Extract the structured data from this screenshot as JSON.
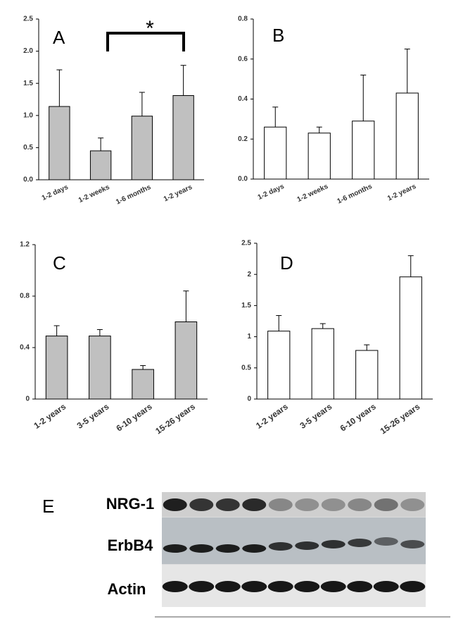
{
  "chart_data": [
    {
      "type": "bar",
      "panel_label": "A",
      "annotation": "*",
      "categories": [
        "1-2 days",
        "1-2 weeks",
        "1-6 months",
        "1-2 years"
      ],
      "series": [
        {
          "color": "#c0c0c0",
          "values": [
            1.14,
            0.45,
            0.99,
            1.31
          ],
          "errors": [
            0.57,
            0.2,
            0.37,
            0.47
          ]
        }
      ],
      "ylim": [
        0,
        2.5
      ],
      "yticks": [
        {
          "value": 0,
          "label": "0.0"
        },
        0.5,
        {
          "value": 1,
          "label": "1.0"
        },
        1.5,
        {
          "value": 2,
          "label": "2.0"
        },
        2.5
      ]
    },
    {
      "type": "bar",
      "panel_label": "B",
      "categories": [
        "1-2 days",
        "1-2 weeks",
        "1-6 months",
        "1-2 years"
      ],
      "series": [
        {
          "color": "#ffffff",
          "values": [
            0.26,
            0.23,
            0.29,
            0.43
          ],
          "errors": [
            0.1,
            0.03,
            0.23,
            0.22
          ]
        }
      ],
      "ylim": [
        0,
        0.8
      ],
      "yticks": [
        {
          "value": 0,
          "label": "0.0"
        },
        0.2,
        0.4,
        0.6,
        0.8
      ]
    },
    {
      "type": "bar",
      "panel_label": "C",
      "categories": [
        "1-2 years",
        "3-5 years",
        "6-10 years",
        "15-26 years"
      ],
      "series": [
        {
          "color": "#c0c0c0",
          "values": [
            0.49,
            0.49,
            0.23,
            0.6
          ],
          "errors": [
            0.08,
            0.05,
            0.03,
            0.24
          ]
        }
      ],
      "ylim": [
        0,
        1.2
      ],
      "yticks": [
        0,
        0.4,
        0.8,
        1.2
      ]
    },
    {
      "type": "bar",
      "panel_label": "D",
      "categories": [
        "1-2 years",
        "3-5 years",
        "6-10 years",
        "15-26 years"
      ],
      "series": [
        {
          "color": "#ffffff",
          "values": [
            1.09,
            1.13,
            0.78,
            1.96
          ],
          "errors": [
            0.25,
            0.08,
            0.09,
            0.34
          ]
        }
      ],
      "ylim": [
        0,
        2.5
      ],
      "yticks": [
        0,
        0.5,
        1,
        1.5,
        2,
        2.5
      ]
    }
  ],
  "blot": {
    "panel_label": "E",
    "rows": [
      "NRG-1",
      "ErbB4",
      "Actin"
    ]
  }
}
